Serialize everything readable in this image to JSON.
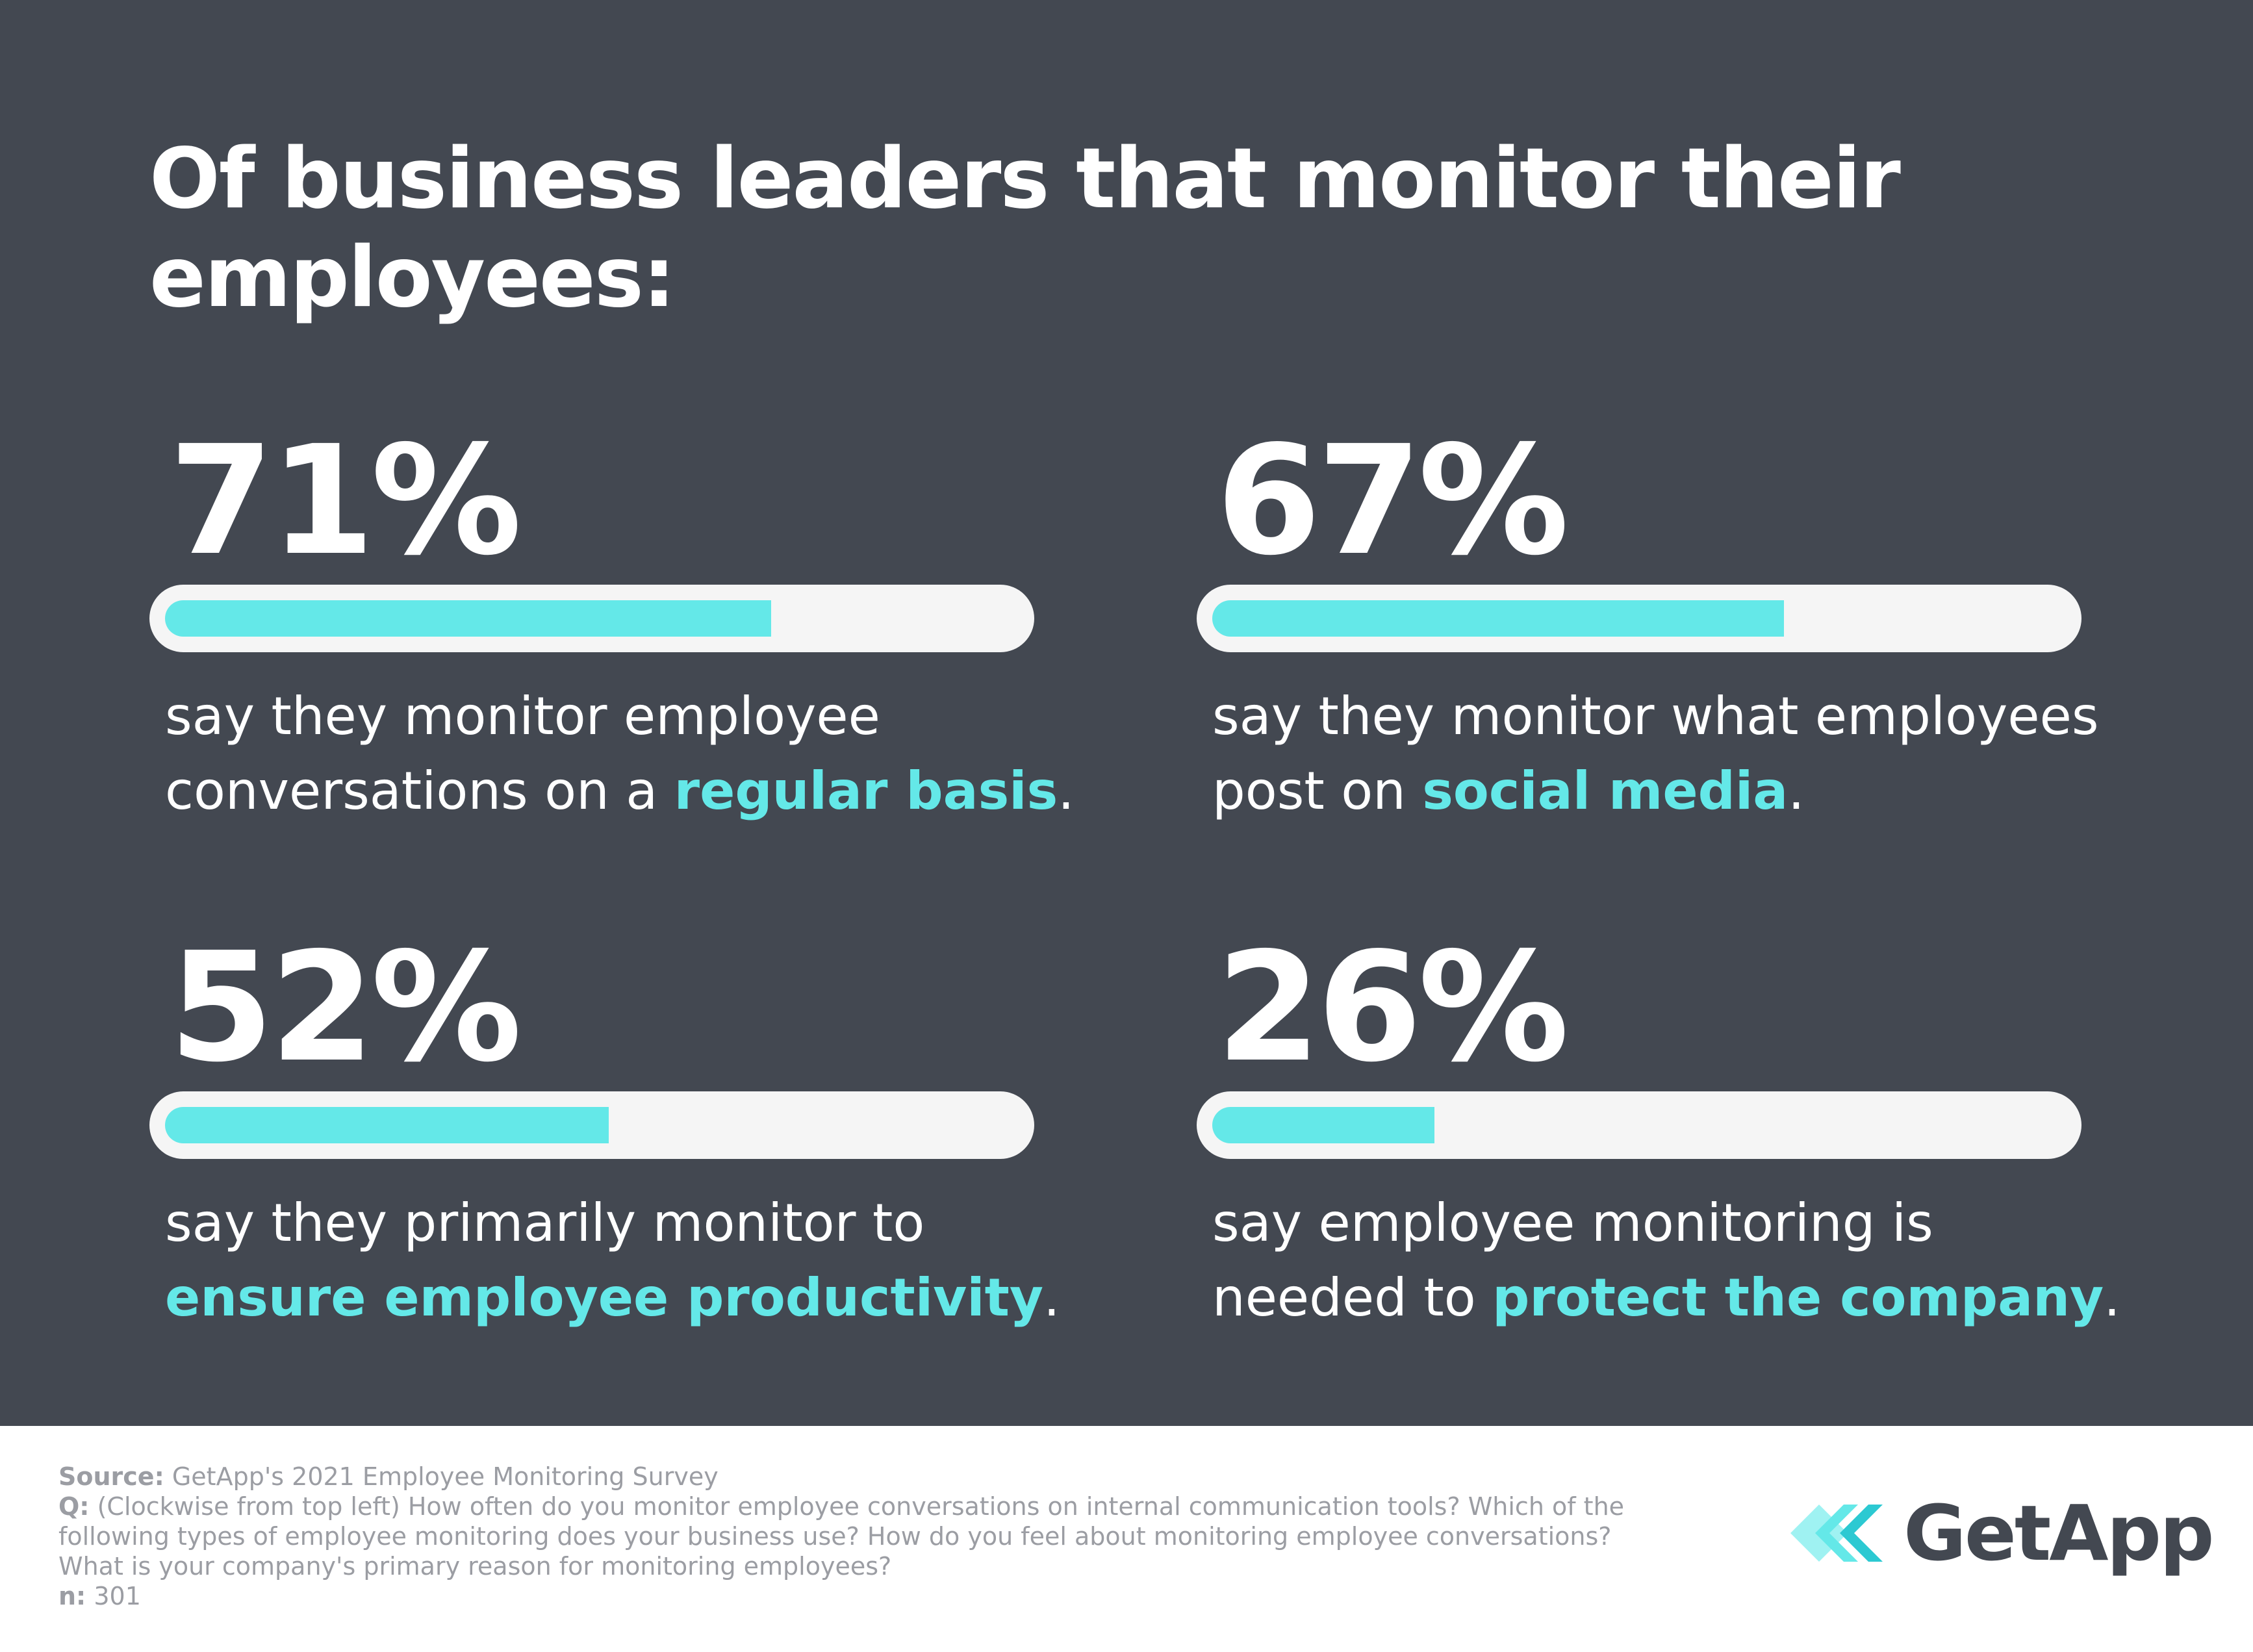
{
  "title": "Of business leaders that monitor their employees:",
  "colors": {
    "background": "#434851",
    "accent": "#64e8e8",
    "track": "#f5f5f5",
    "text": "#ffffff",
    "footer": "#9b9da3"
  },
  "chart_data": {
    "type": "bar",
    "title": "Of business leaders that monitor their employees:",
    "unit": "%",
    "ylim": [
      0,
      100
    ],
    "stats": [
      {
        "label": "71%",
        "value": 71,
        "pre": "say they monitor employee conversations on a ",
        "highlight": "regular basis",
        "post": "."
      },
      {
        "label": "67%",
        "value": 67,
        "pre": "say they monitor what employees post on ",
        "highlight": "social media",
        "post": "."
      },
      {
        "label": "52%",
        "value": 52,
        "pre": "say they primarily monitor to ",
        "highlight": "ensure employee productivity",
        "post": "."
      },
      {
        "label": "26%",
        "value": 26,
        "pre": "say employee monitoring is needed to ",
        "highlight": "protect the company",
        "post": "."
      }
    ]
  },
  "footer": {
    "source_label": "Source:",
    "source_text": "GetApp's 2021 Employee Monitoring Survey",
    "q_label": "Q:",
    "q_text": "(Clockwise from top left) How often do you monitor employee conversations on internal communication tools? Which of the following types of employee monitoring does your business use? How do you feel about monitoring employee conversations? What is your company's primary reason for monitoring employees?",
    "n_label": "n:",
    "n_text": "301"
  },
  "logo": {
    "text": "GetApp",
    "icon": "getapp-chevrons-icon"
  }
}
